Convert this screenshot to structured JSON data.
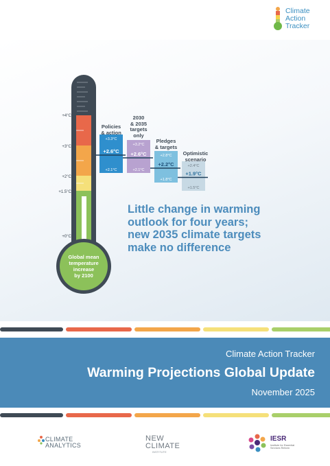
{
  "brand": {
    "name_line1": "Climate",
    "name_line2": "Action",
    "name_line3": "Tracker",
    "accent": "#3a8fc1"
  },
  "figure": {
    "scale_labels": [
      "+4°C",
      "+3°C",
      "+2°C",
      "+1.5°C",
      "+0°C"
    ],
    "bulb_text": [
      "Global mean",
      "temperature",
      "increase",
      "by 2100"
    ],
    "scenarios": [
      {
        "label_lines": [
          "Policies",
          "& action"
        ],
        "high": "+3.3°C",
        "median": "+2.6°C",
        "low": "+2.1°C",
        "color": "#2f8fcd"
      },
      {
        "label_lines": [
          "2030",
          "& 2035",
          "targets",
          "only"
        ],
        "high": "+3.2°C",
        "median": "+2.6°C",
        "low": "+2.1°C",
        "color": "#b8a2d0"
      },
      {
        "label_lines": [
          "Pledges",
          "& targets"
        ],
        "high": "+2.8°C",
        "median": "+2.2°C",
        "low": "+1.8°C",
        "color": "#7ec0df"
      },
      {
        "label_lines": [
          "Optimistic",
          "scenario"
        ],
        "high": "+2.4°C",
        "median": "+1.9°C",
        "low": "+1.5°C",
        "color": "#c7d9e4"
      }
    ]
  },
  "headline_lines": [
    "Little change in warming",
    "outlook for four years;",
    "new 2035 climate targets",
    "make no difference"
  ],
  "title_band": {
    "org": "Climate Action Tracker",
    "title": "Warming Projections Global Update",
    "date": "November 2025",
    "color": "#4b8ab8"
  },
  "partners": {
    "climate_analytics": [
      "CLIMATE",
      "ANALYTICS"
    ],
    "new_climate": [
      "NEW",
      "CLIMATE"
    ],
    "new_climate_sub": "INSTITUTE",
    "iesr": "IESR",
    "iesr_sub": "Institute for Essential Services Reform"
  },
  "dash_colors": [
    "#3f4a55",
    "#e8684a",
    "#f3a64a",
    "#f5e07a",
    "#a9cf6a"
  ]
}
